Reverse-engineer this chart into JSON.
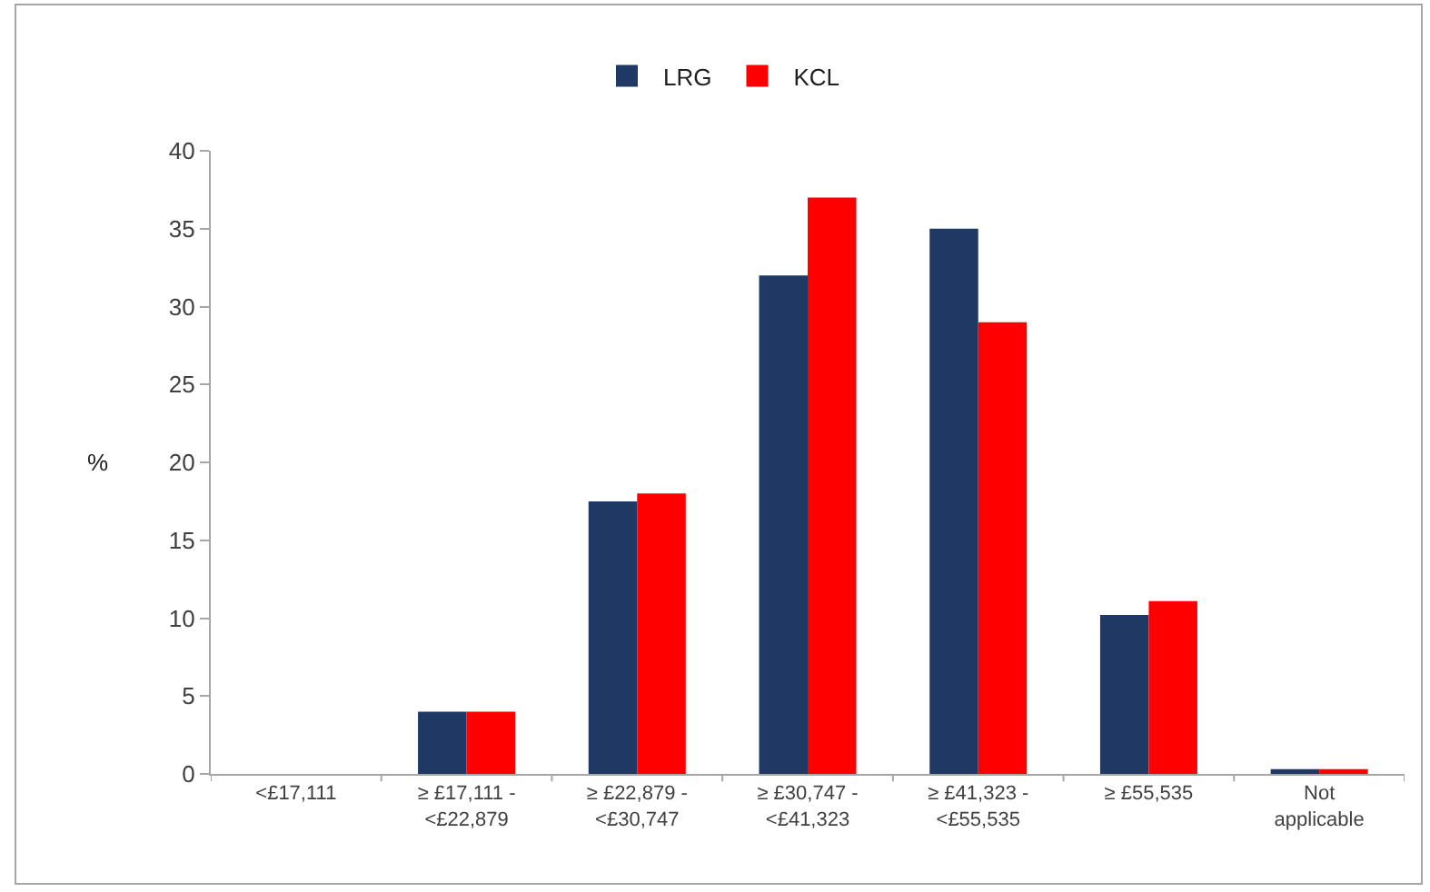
{
  "chart_data": {
    "type": "bar",
    "ylabel": "%",
    "categories": [
      "<£17,111",
      "≥ £17,111 - <£22,879",
      "≥ £22,879 - <£30,747",
      "≥ £30,747 - <£41,323",
      "≥ £41,323 - <£55,535",
      "≥ £55,535",
      "Not applicable"
    ],
    "series": [
      {
        "name": "LRG",
        "color": "#1f3864",
        "values": [
          0,
          4,
          17.5,
          32,
          35,
          10.2,
          0.3
        ]
      },
      {
        "name": "KCL",
        "color": "#ff0000",
        "values": [
          0,
          4,
          18,
          37,
          29,
          11.1,
          0.3
        ]
      }
    ],
    "ylim": [
      0,
      40
    ],
    "yticks": [
      0,
      5,
      10,
      15,
      20,
      25,
      30,
      35,
      40
    ],
    "legend": "top"
  }
}
